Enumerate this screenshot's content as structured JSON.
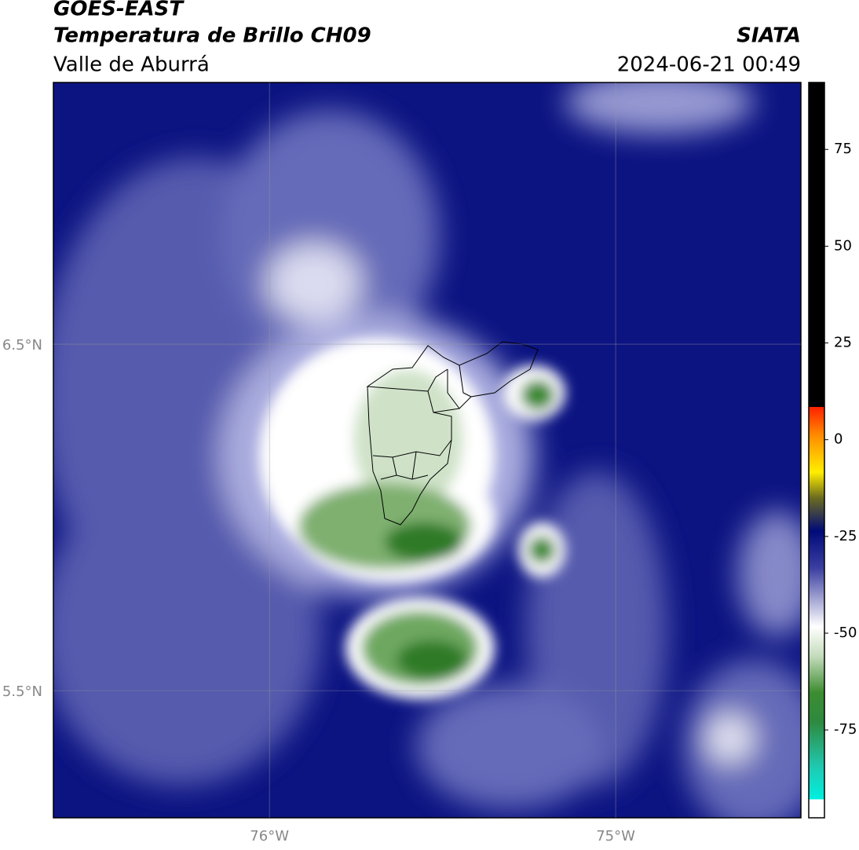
{
  "header": {
    "title": "GOES-EAST",
    "subtitle": "Temperatura de Brillo CH09",
    "source": "SIATA",
    "region": "Valle de Aburrá",
    "timestamp": "2024-06-21 00:49"
  },
  "map": {
    "lon_range": [
      -76.624,
      -74.465
    ],
    "lat_range": [
      5.133,
      7.255
    ],
    "lon_ticks": [
      {
        "value": -76,
        "label": "76°W"
      },
      {
        "value": -75,
        "label": "75°W"
      }
    ],
    "lat_ticks": [
      {
        "value": 6.5,
        "label": "6.5°N"
      },
      {
        "value": 5.5,
        "label": "5.5°N"
      }
    ]
  },
  "colorbar": {
    "range": [
      -97.7,
      92.3
    ],
    "ticks": [
      75,
      50,
      25,
      0,
      -25,
      -50,
      -75
    ]
  }
}
